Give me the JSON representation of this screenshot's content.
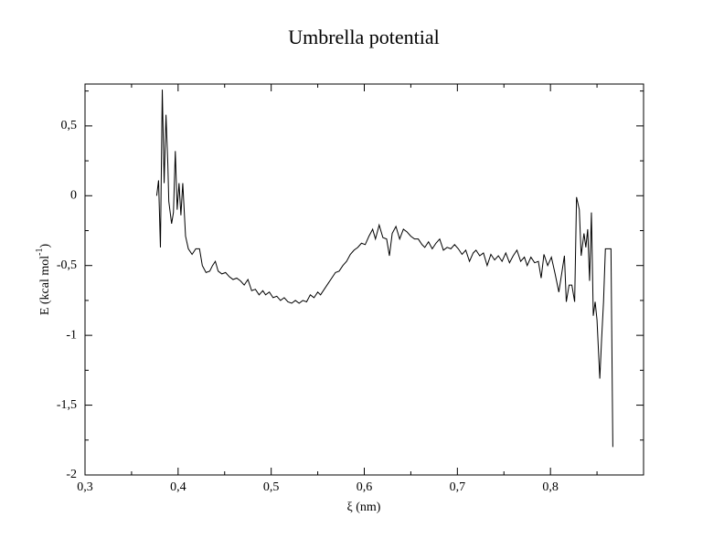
{
  "chart_data": {
    "type": "line",
    "title": "Umbrella potential",
    "xlabel": "ξ (nm)",
    "ylabel": [
      "E (kcal mol",
      "-1",
      ")"
    ],
    "color": "#000000",
    "x": [
      0.377,
      0.379,
      0.381,
      0.383,
      0.385,
      0.387,
      0.389,
      0.39,
      0.393,
      0.395,
      0.397,
      0.399,
      0.401,
      0.403,
      0.405,
      0.408,
      0.411,
      0.415,
      0.419,
      0.423,
      0.426,
      0.43,
      0.434,
      0.437,
      0.44,
      0.443,
      0.447,
      0.451,
      0.455,
      0.459,
      0.463,
      0.467,
      0.471,
      0.475,
      0.479,
      0.483,
      0.487,
      0.491,
      0.494,
      0.498,
      0.502,
      0.506,
      0.51,
      0.514,
      0.518,
      0.522,
      0.526,
      0.53,
      0.534,
      0.538,
      0.542,
      0.546,
      0.55,
      0.553,
      0.557,
      0.561,
      0.565,
      0.569,
      0.573,
      0.577,
      0.581,
      0.585,
      0.589,
      0.593,
      0.597,
      0.601,
      0.605,
      0.609,
      0.612,
      0.616,
      0.62,
      0.624,
      0.627,
      0.63,
      0.634,
      0.638,
      0.642,
      0.646,
      0.65,
      0.654,
      0.658,
      0.662,
      0.665,
      0.669,
      0.673,
      0.677,
      0.681,
      0.685,
      0.689,
      0.693,
      0.697,
      0.701,
      0.705,
      0.709,
      0.713,
      0.717,
      0.72,
      0.724,
      0.728,
      0.732,
      0.736,
      0.74,
      0.744,
      0.748,
      0.752,
      0.756,
      0.76,
      0.764,
      0.768,
      0.772,
      0.775,
      0.779,
      0.783,
      0.787,
      0.79,
      0.793,
      0.797,
      0.801,
      0.805,
      0.809,
      0.812,
      0.815,
      0.817,
      0.82,
      0.823,
      0.826,
      0.828,
      0.831,
      0.833,
      0.836,
      0.838,
      0.84,
      0.842,
      0.844,
      0.846,
      0.848,
      0.85,
      0.853,
      0.855,
      0.857,
      0.859,
      0.865,
      0.867
    ],
    "values": [
      0.0,
      0.11,
      -0.37,
      0.76,
      0.09,
      0.58,
      0.22,
      -0.04,
      -0.2,
      -0.12,
      0.32,
      -0.1,
      0.09,
      -0.14,
      0.09,
      -0.29,
      -0.38,
      -0.42,
      -0.38,
      -0.38,
      -0.5,
      -0.55,
      -0.54,
      -0.5,
      -0.47,
      -0.54,
      -0.56,
      -0.55,
      -0.58,
      -0.6,
      -0.59,
      -0.61,
      -0.64,
      -0.6,
      -0.68,
      -0.67,
      -0.71,
      -0.68,
      -0.71,
      -0.69,
      -0.73,
      -0.72,
      -0.75,
      -0.73,
      -0.76,
      -0.77,
      -0.75,
      -0.77,
      -0.75,
      -0.76,
      -0.71,
      -0.73,
      -0.69,
      -0.71,
      -0.67,
      -0.63,
      -0.59,
      -0.55,
      -0.54,
      -0.5,
      -0.47,
      -0.42,
      -0.39,
      -0.37,
      -0.34,
      -0.35,
      -0.29,
      -0.24,
      -0.31,
      -0.21,
      -0.3,
      -0.31,
      -0.43,
      -0.27,
      -0.22,
      -0.31,
      -0.24,
      -0.26,
      -0.29,
      -0.31,
      -0.31,
      -0.35,
      -0.37,
      -0.33,
      -0.38,
      -0.34,
      -0.31,
      -0.39,
      -0.37,
      -0.38,
      -0.35,
      -0.38,
      -0.42,
      -0.39,
      -0.47,
      -0.41,
      -0.39,
      -0.43,
      -0.41,
      -0.5,
      -0.42,
      -0.46,
      -0.43,
      -0.47,
      -0.41,
      -0.48,
      -0.43,
      -0.39,
      -0.47,
      -0.44,
      -0.5,
      -0.44,
      -0.48,
      -0.47,
      -0.59,
      -0.42,
      -0.5,
      -0.44,
      -0.56,
      -0.69,
      -0.56,
      -0.43,
      -0.76,
      -0.64,
      -0.64,
      -0.76,
      -0.01,
      -0.1,
      -0.43,
      -0.27,
      -0.37,
      -0.24,
      -0.61,
      -0.12,
      -0.86,
      -0.76,
      -0.89,
      -1.31,
      -1.02,
      -0.76,
      -0.38,
      -0.38,
      -1.8
    ],
    "xlim": [
      0.3,
      0.9
    ],
    "ylim": [
      -2,
      0.8
    ],
    "xticks": [
      {
        "value": 0.3,
        "label": "0,3"
      },
      {
        "value": 0.4,
        "label": "0,4"
      },
      {
        "value": 0.5,
        "label": "0,5"
      },
      {
        "value": 0.6,
        "label": "0,6"
      },
      {
        "value": 0.7,
        "label": "0,7"
      },
      {
        "value": 0.8,
        "label": "0,8"
      }
    ],
    "yticks": [
      -2,
      {
        "value": -1.5,
        "label": "-1,5"
      },
      -1,
      {
        "value": -0.5,
        "label": "-0,5"
      },
      0,
      {
        "value": 0.5,
        "label": "0,5"
      }
    ],
    "xminorticks": [
      0.35,
      0.45,
      0.55,
      0.65,
      0.75,
      0.85
    ],
    "yminorticks": [
      -1.75,
      -1.25,
      -0.75,
      -0.25,
      0.25,
      0.75
    ]
  }
}
